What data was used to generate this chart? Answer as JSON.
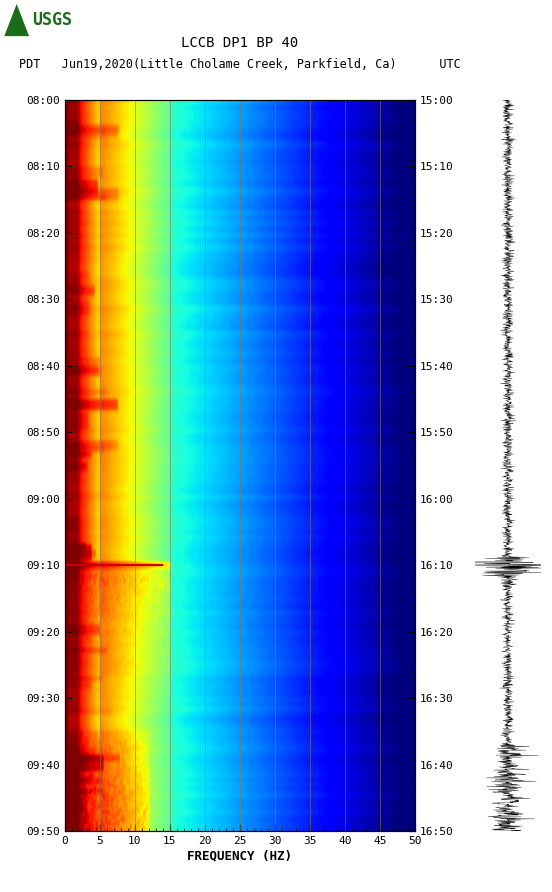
{
  "title_line1": "LCCB DP1 BP 40",
  "title_line2": "PDT   Jun19,2020(Little Cholame Creek, Parkfield, Ca)      UTC",
  "xlabel": "FREQUENCY (HZ)",
  "freq_ticks": [
    0,
    5,
    10,
    15,
    20,
    25,
    30,
    35,
    40,
    45,
    50
  ],
  "time_labels_pdt": [
    "08:00",
    "08:10",
    "08:20",
    "08:30",
    "08:40",
    "08:50",
    "09:00",
    "09:10",
    "09:20",
    "09:30",
    "09:40",
    "09:50"
  ],
  "time_labels_utc": [
    "15:00",
    "15:10",
    "15:20",
    "15:30",
    "15:40",
    "15:50",
    "16:00",
    "16:10",
    "16:20",
    "16:30",
    "16:40",
    "16:50"
  ],
  "n_time": 660,
  "n_freq": 500,
  "figsize": [
    5.52,
    8.92
  ],
  "dpi": 100,
  "grid_color": "#8B7355",
  "dark_red_stripe": "#7B0000",
  "eq_line_color": "#CC0000",
  "usgs_green": "#1a6b1a"
}
